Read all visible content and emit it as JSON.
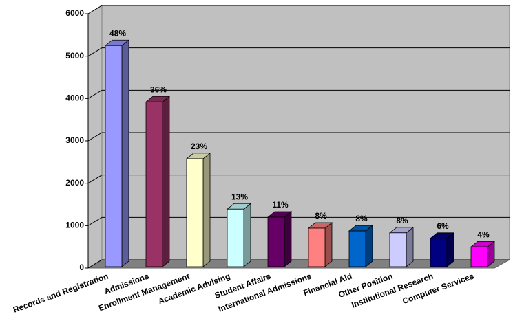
{
  "chart_data": {
    "type": "bar3d",
    "categories": [
      "Records and Registration",
      "Admissions",
      "Enrollment Management",
      "Academic Advising",
      "Student Affairs",
      "International Admissions",
      "Financial Aid",
      "Other Position",
      "Institutional Research",
      "Computer Services"
    ],
    "values": [
      5250,
      3920,
      2580,
      1390,
      1200,
      940,
      875,
      830,
      700,
      500
    ],
    "annotations": [
      "48%",
      "36%",
      "23%",
      "13%",
      "11%",
      "8%",
      "8%",
      "8%",
      "6%",
      "4%"
    ],
    "colors": [
      "#9999ff",
      "#993366",
      "#ffffcc",
      "#ccffff",
      "#660066",
      "#ff8080",
      "#0066cc",
      "#ccccff",
      "#000080",
      "#ff00ff"
    ],
    "ylim": [
      0,
      6000
    ],
    "yticks": [
      0,
      1000,
      2000,
      3000,
      4000,
      5000,
      6000
    ],
    "grid": true
  }
}
